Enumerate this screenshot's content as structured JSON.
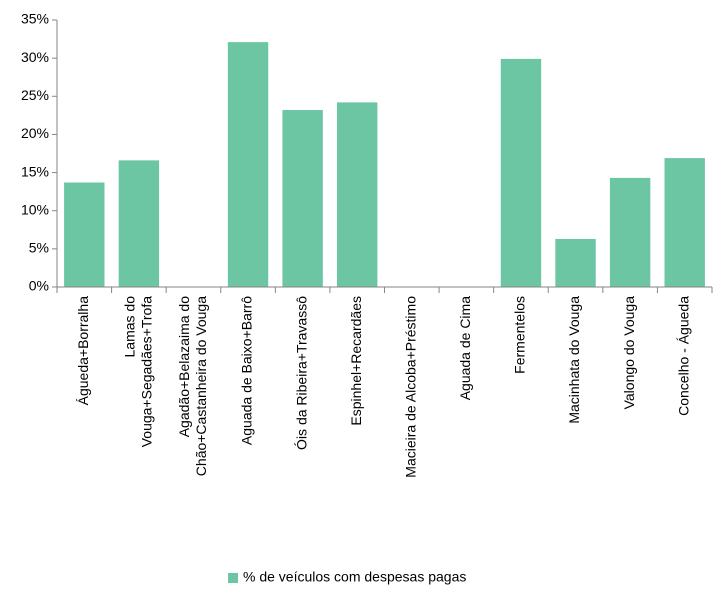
{
  "chart_data": {
    "type": "bar",
    "categories": [
      "Águeda+Borralha",
      "Lamas do Vouga+Segadães+Trofa",
      "Agadão+Belazaima do Chão+Castanheira do Vouga",
      "Aguada de Baixo+Barrô",
      "Óis da Ribeira+Travassô",
      "Espinhel+Recardães",
      "Macieira de Alcoba+Préstimo",
      "Aguada de Cima",
      "Fermentelos",
      "Macinhata do Vouga",
      "Valongo do Vouga",
      "Concelho - Águeda"
    ],
    "series": [
      {
        "name": "% de veículos com despesas pagas",
        "color": "#6cc5a3",
        "values": [
          13.7,
          16.6,
          0,
          32.1,
          23.2,
          24.2,
          0,
          0,
          29.9,
          6.3,
          14.3,
          16.9
        ]
      }
    ],
    "ylim": [
      0,
      35
    ],
    "yticks": [
      {
        "value": 0,
        "label": "0%"
      },
      {
        "value": 5,
        "label": "5%"
      },
      {
        "value": 10,
        "label": "10%"
      },
      {
        "value": 15,
        "label": "15%"
      },
      {
        "value": 20,
        "label": "20%"
      },
      {
        "value": 25,
        "label": "25%"
      },
      {
        "value": 30,
        "label": "30%"
      },
      {
        "value": 35,
        "label": "35%"
      }
    ],
    "grid": false,
    "legend": "bottom"
  }
}
